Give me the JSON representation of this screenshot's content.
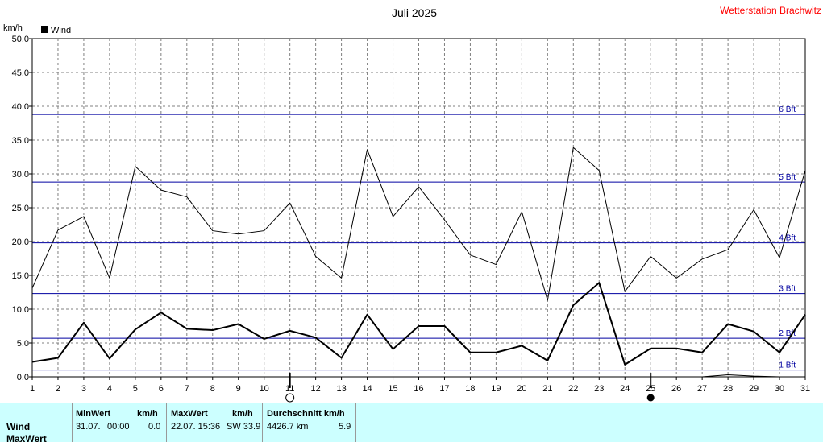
{
  "header": {
    "title": "Juli 2025",
    "station": "Wetterstation Brachwitz",
    "unit_label": "km/h",
    "legend_label": "Wind"
  },
  "colors": {
    "station": "#ff0000",
    "beaufort": "#0000a0",
    "grid": "#808080",
    "stats_bg": "#ccffff"
  },
  "chart_data": {
    "type": "line",
    "ylabel": "km/h",
    "ylim": [
      0,
      50
    ],
    "y_ticks": [
      "0.0",
      "5.0",
      "10.0",
      "15.0",
      "20.0",
      "25.0",
      "30.0",
      "35.0",
      "40.0",
      "45.0",
      "50.0"
    ],
    "x": [
      1,
      2,
      3,
      4,
      5,
      6,
      7,
      8,
      9,
      10,
      11,
      12,
      13,
      14,
      15,
      16,
      17,
      18,
      19,
      20,
      21,
      22,
      23,
      24,
      25,
      26,
      27,
      28,
      29,
      30,
      31
    ],
    "x_ticks": [
      "1",
      "2",
      "3",
      "4",
      "5",
      "6",
      "7",
      "8",
      "9",
      "10",
      "11",
      "12",
      "13",
      "14",
      "15",
      "16",
      "17",
      "18",
      "19",
      "20",
      "21",
      "22",
      "23",
      "24",
      "25",
      "26",
      "27",
      "28",
      "29",
      "30",
      "31"
    ],
    "grid": true,
    "legend_position": "top-left",
    "series": [
      {
        "name": "Wind",
        "values": [
          2.2,
          2.8,
          8.0,
          2.7,
          7.0,
          9.5,
          7.1,
          6.9,
          7.8,
          5.6,
          6.8,
          5.8,
          2.8,
          9.2,
          4.1,
          7.5,
          7.5,
          3.6,
          3.6,
          4.6,
          2.4,
          10.6,
          13.9,
          1.8,
          4.2,
          4.2,
          3.6,
          7.8,
          6.7,
          3.6,
          9.2
        ]
      },
      {
        "values": [
          13.1,
          21.7,
          23.7,
          14.6,
          31.1,
          27.6,
          26.6,
          21.6,
          21.1,
          21.6,
          25.7,
          17.8,
          14.6,
          33.6,
          23.7,
          28.1,
          23.2,
          18.0,
          16.6,
          24.4,
          11.3,
          33.9,
          30.5,
          12.6,
          17.8,
          14.6,
          17.4,
          18.8,
          24.7,
          17.6,
          30.5
        ]
      },
      {
        "values": [
          0,
          0,
          0,
          0,
          0,
          0,
          0,
          0,
          0,
          0,
          0,
          0,
          0,
          0,
          0,
          0,
          0,
          0,
          0,
          0,
          0,
          0,
          0,
          0,
          0,
          0,
          0,
          0.3,
          0.1,
          0,
          0
        ]
      }
    ],
    "beaufort_lines": [
      {
        "label": "1 Bft",
        "value": 1
      },
      {
        "label": "2 Bft",
        "value": 5.7
      },
      {
        "label": "3 Bft",
        "value": 12.3
      },
      {
        "label": "4 Bft",
        "value": 19.8
      },
      {
        "label": "5 Bft",
        "value": 28.8
      },
      {
        "label": "6 Bft",
        "value": 38.8
      }
    ],
    "moon_phases": [
      {
        "day": 11,
        "phase": "full"
      },
      {
        "day": 25,
        "phase": "new"
      }
    ]
  },
  "stats": {
    "row_labels": [
      "Wind",
      "MaxWert"
    ],
    "min": {
      "header": "MinWert",
      "unit": "km/h",
      "date": "31.07.",
      "time": "00:00",
      "value": "0.0"
    },
    "max": {
      "header": "MaxWert",
      "unit": "km/h",
      "datetime": "22.07.  15:36",
      "dir_value": "SW 33.9"
    },
    "avg": {
      "header": "Durchschnitt km/h",
      "distance": "4426.7 km",
      "value": "5.9"
    }
  }
}
